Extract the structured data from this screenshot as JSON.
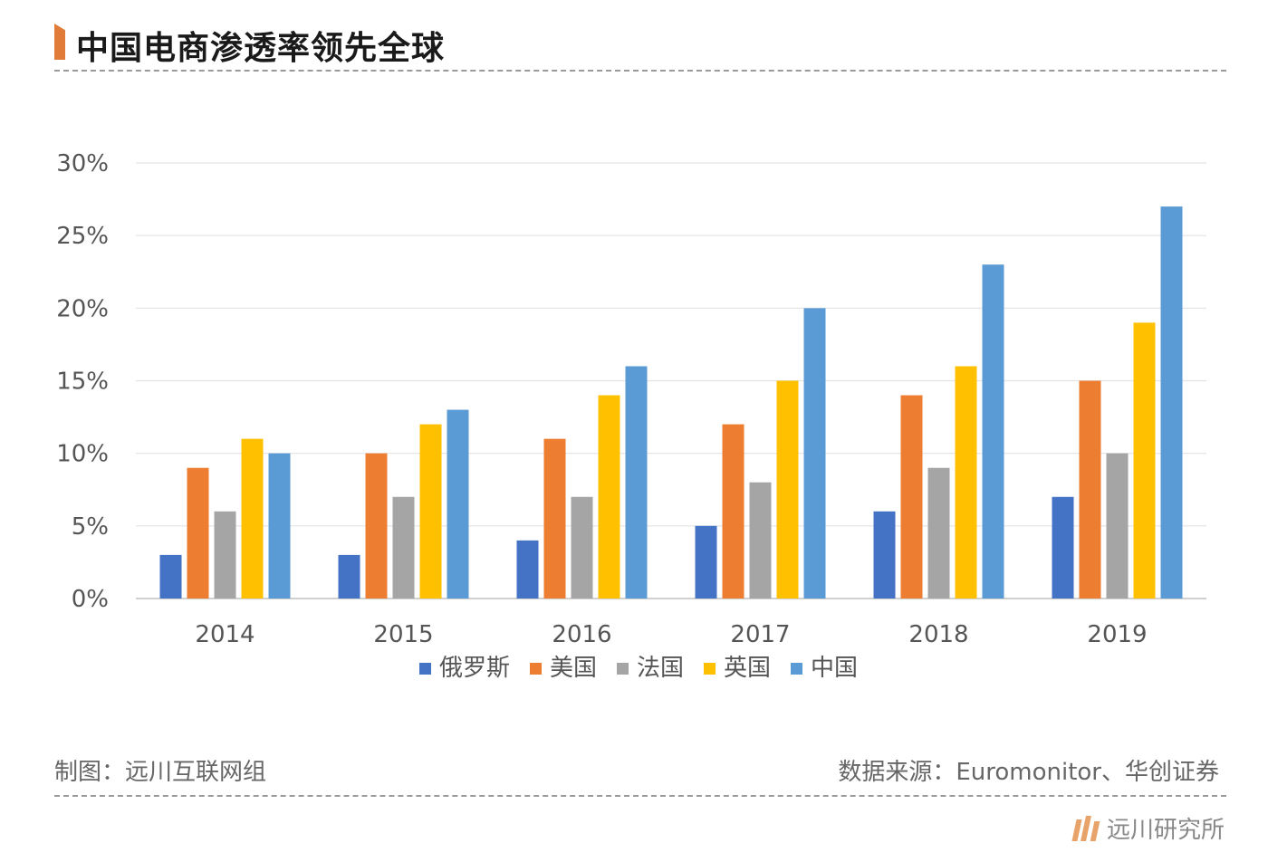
{
  "header": {
    "title": "中国电商渗透率领先全球"
  },
  "footer": {
    "credit": "制图：远川互联网组",
    "source": "数据来源：Euromonitor、华创证券",
    "brand": "远川研究所"
  },
  "chart_data": {
    "type": "bar",
    "title": "中国电商渗透率领先全球",
    "categories": [
      "2014",
      "2015",
      "2016",
      "2017",
      "2018",
      "2019"
    ],
    "series": [
      {
        "name": "俄罗斯",
        "color": "#4472c4",
        "values": [
          3,
          3,
          4,
          5,
          6,
          7
        ]
      },
      {
        "name": "美国",
        "color": "#ed7d31",
        "values": [
          9,
          10,
          11,
          12,
          14,
          15
        ]
      },
      {
        "name": "法国",
        "color": "#a5a5a5",
        "values": [
          6,
          7,
          7,
          8,
          9,
          10
        ]
      },
      {
        "name": "英国",
        "color": "#ffc000",
        "values": [
          11,
          12,
          14,
          15,
          16,
          19
        ]
      },
      {
        "name": "中国",
        "color": "#5b9bd5",
        "values": [
          10,
          13,
          16,
          20,
          23,
          27
        ]
      }
    ],
    "ylim": [
      0,
      30
    ],
    "yticks": [
      "0%",
      "5%",
      "10%",
      "15%",
      "20%",
      "25%",
      "30%"
    ],
    "ytick_values": [
      0,
      5,
      10,
      15,
      20,
      25,
      30
    ],
    "grid": true,
    "legend_position": "bottom"
  }
}
